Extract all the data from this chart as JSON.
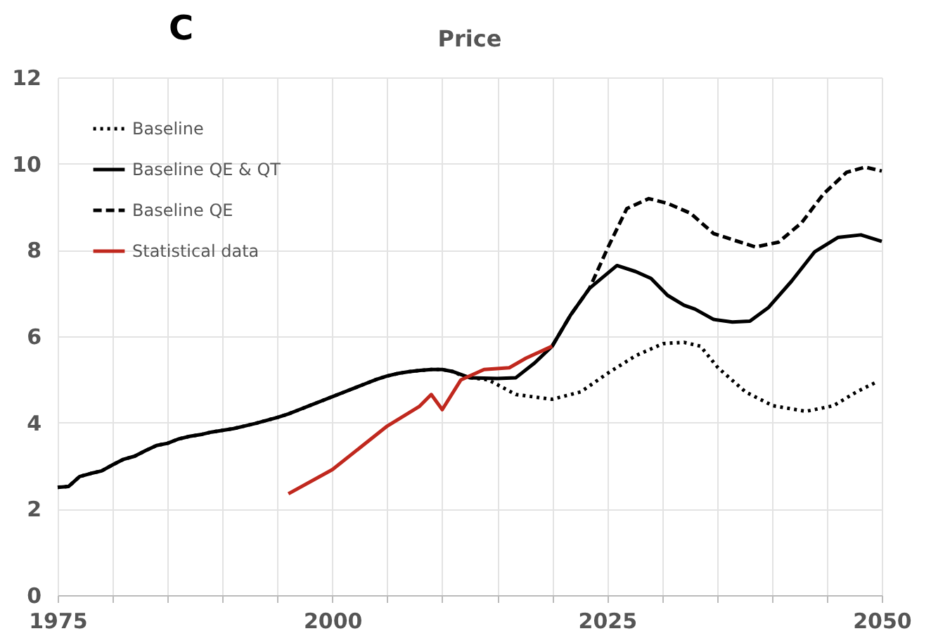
{
  "chart_data": {
    "type": "line",
    "title": "Price",
    "annotations": [
      "C"
    ],
    "xlim": [
      1975,
      2050
    ],
    "ylim": [
      0,
      12
    ],
    "xticks": [
      1975,
      {
        "value": 1980,
        "label": null
      },
      {
        "value": 1985,
        "label": null
      },
      {
        "value": 1990,
        "label": null
      },
      {
        "value": 1995,
        "label": null
      },
      2000,
      {
        "value": 2005,
        "label": null
      },
      {
        "value": 2010,
        "label": null
      },
      {
        "value": 2015,
        "label": null
      },
      {
        "value": 2020,
        "label": null
      },
      2025,
      {
        "value": 2030,
        "label": null
      },
      {
        "value": 2035,
        "label": null
      },
      {
        "value": 2040,
        "label": null
      },
      {
        "value": 2045,
        "label": null
      },
      2050
    ],
    "yticks": [
      0,
      2,
      4,
      6,
      8,
      10,
      12
    ],
    "grid": true,
    "legend": "top left",
    "marker": "none",
    "series": [
      {
        "name": "Baseline",
        "color": "#000000",
        "line_style": "dotted",
        "x": [
          1975,
          1976,
          1977,
          1978,
          1979,
          1980,
          1981,
          1982,
          1983,
          1984,
          1985,
          1986,
          1987,
          1988,
          1989,
          1990,
          1991,
          1992,
          1993,
          1994,
          1995,
          1996,
          1997,
          1998,
          1999,
          2000,
          2001,
          2002,
          2003,
          2004,
          2005,
          2006,
          2007,
          2008,
          2009,
          2010,
          2011,
          2012,
          2014.2,
          2016.7,
          2020,
          2022.6,
          2025.1,
          2027.6,
          2030.1,
          2032,
          2033.5,
          2035.1,
          2037.6,
          2040.1,
          2043.1,
          2045.6,
          2047.7,
          2049.6
        ],
        "values": [
          2.5,
          2.52,
          2.75,
          2.82,
          2.88,
          3.02,
          3.15,
          3.22,
          3.35,
          3.47,
          3.52,
          3.62,
          3.68,
          3.72,
          3.78,
          3.82,
          3.86,
          3.92,
          3.98,
          4.05,
          4.12,
          4.2,
          4.3,
          4.4,
          4.5,
          4.6,
          4.7,
          4.8,
          4.9,
          5.0,
          5.08,
          5.14,
          5.18,
          5.21,
          5.23,
          5.23,
          5.18,
          5.06,
          4.99,
          4.65,
          4.54,
          4.71,
          5.15,
          5.55,
          5.83,
          5.86,
          5.77,
          5.27,
          4.71,
          4.39,
          4.26,
          4.39,
          4.71,
          4.95
        ]
      },
      {
        "name": "Baseline QE & QT",
        "color": "#000000",
        "line_style": "solid",
        "x": [
          1975,
          1976,
          1977,
          1978,
          1979,
          1980,
          1981,
          1982,
          1983,
          1984,
          1985,
          1986,
          1987,
          1988,
          1989,
          1990,
          1991,
          1992,
          1993,
          1994,
          1995,
          1996,
          1997,
          1998,
          1999,
          2000,
          2001,
          2002,
          2003,
          2004,
          2005,
          2006,
          2007,
          2008,
          2009,
          2010,
          2011,
          2012.5,
          2015,
          2016.7,
          2018.4,
          2020,
          2021.7,
          2023.4,
          2025.9,
          2027.6,
          2029,
          2030.5,
          2032,
          2033,
          2034.7,
          2036.4,
          2038,
          2039.7,
          2041.8,
          2043.9,
          2046,
          2048.1,
          2050
        ],
        "values": [
          2.5,
          2.52,
          2.75,
          2.82,
          2.88,
          3.02,
          3.15,
          3.22,
          3.35,
          3.47,
          3.52,
          3.62,
          3.68,
          3.72,
          3.78,
          3.82,
          3.86,
          3.92,
          3.98,
          4.05,
          4.12,
          4.2,
          4.3,
          4.4,
          4.5,
          4.6,
          4.7,
          4.8,
          4.9,
          5.0,
          5.08,
          5.14,
          5.18,
          5.21,
          5.23,
          5.23,
          5.18,
          5.04,
          5.02,
          5.04,
          5.38,
          5.77,
          6.5,
          7.11,
          7.64,
          7.5,
          7.34,
          6.95,
          6.72,
          6.63,
          6.39,
          6.33,
          6.35,
          6.67,
          7.28,
          7.96,
          8.29,
          8.35,
          8.2
        ]
      },
      {
        "name": "Baseline QE",
        "color": "#000000",
        "line_style": "dashed",
        "x": [
          2020,
          2021.7,
          2023.4,
          2025.1,
          2026.8,
          2028.8,
          2030.5,
          2032.6,
          2034.7,
          2036.4,
          2038.5,
          2040.6,
          2042.7,
          2044.7,
          2046.8,
          2048.5,
          2050
        ],
        "values": [
          5.77,
          6.5,
          7.11,
          8.07,
          8.96,
          9.19,
          9.08,
          8.85,
          8.38,
          8.24,
          8.07,
          8.18,
          8.63,
          9.3,
          9.8,
          9.92,
          9.83
        ]
      },
      {
        "name": "Statistical data",
        "color": "#c0281e",
        "line_style": "solid",
        "x": [
          1996,
          2000,
          2005,
          2007.9,
          2009,
          2010,
          2011.7,
          2013.8,
          2016.1,
          2017.6,
          2020
        ],
        "values": [
          2.35,
          2.91,
          3.92,
          4.37,
          4.65,
          4.3,
          4.99,
          5.23,
          5.27,
          5.49,
          5.77
        ]
      }
    ]
  }
}
